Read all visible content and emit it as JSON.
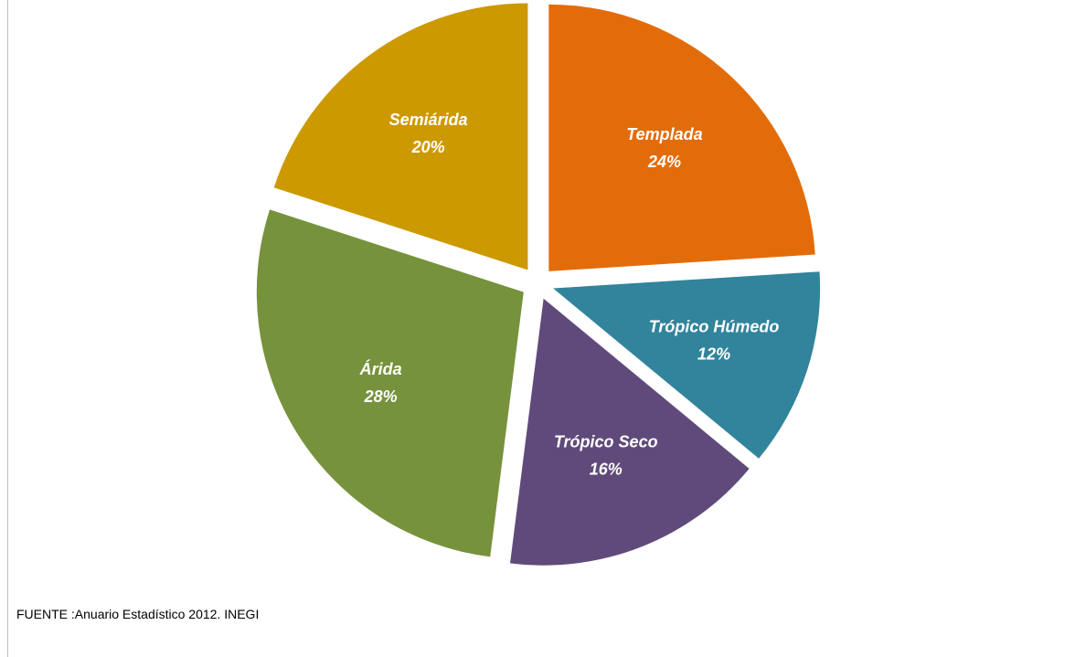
{
  "chart_data": {
    "type": "pie",
    "slices": [
      {
        "name": "Templada",
        "value": 24,
        "label": "24%",
        "color": "#E36C0A"
      },
      {
        "name": "Trópico Húmedo",
        "value": 12,
        "label": "12%",
        "color": "#31849B"
      },
      {
        "name": "Trópico Seco",
        "value": 16,
        "label": "16%",
        "color": "#604A7B"
      },
      {
        "name": "Árida",
        "value": 28,
        "label": "28%",
        "color": "#76923C"
      },
      {
        "name": "Semiárida",
        "value": 20,
        "label": "20%",
        "color": "#CC9900"
      }
    ],
    "label_color": "#FFFFFF",
    "exploded": true,
    "legend": "none"
  },
  "source": "FUENTE :Anuario  Estadístico 2012.  INEGI"
}
